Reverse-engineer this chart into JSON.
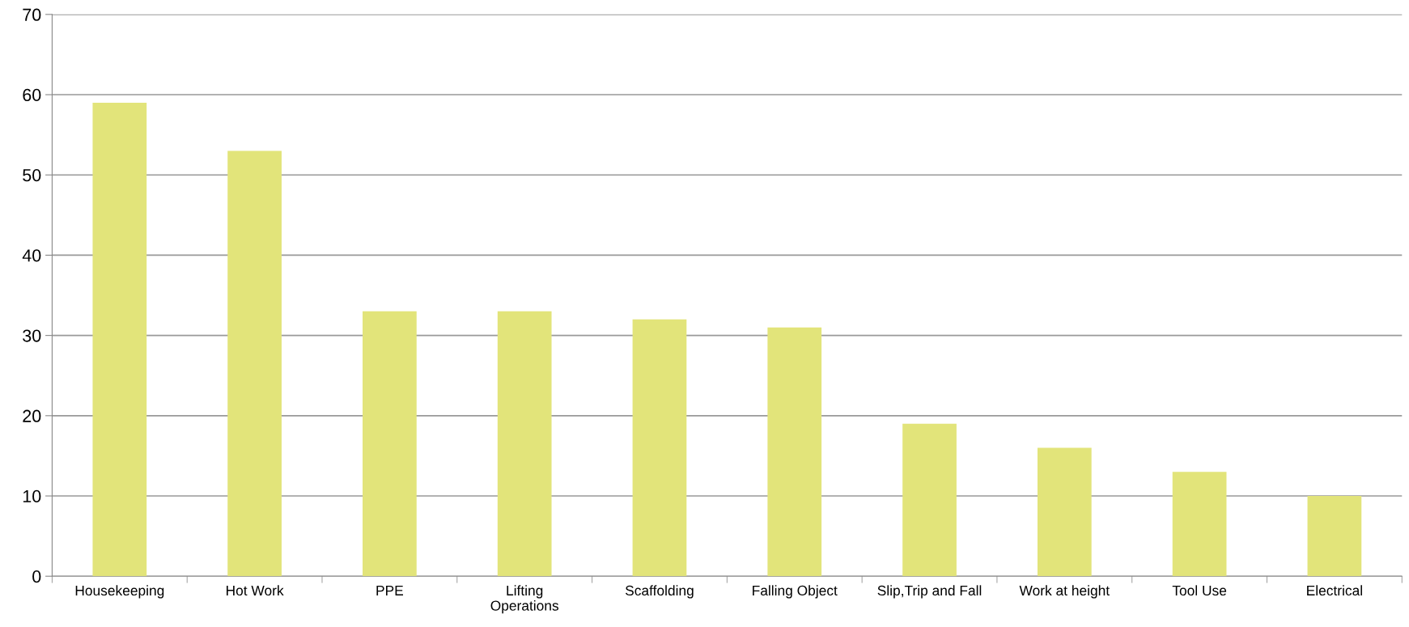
{
  "chart_data": {
    "type": "bar",
    "categories": [
      "Housekeeping",
      "Hot Work",
      "PPE",
      "Lifting\nOperations",
      "Scaffolding",
      "Falling Object",
      "Slip,Trip and Fall",
      "Work at height",
      "Tool Use",
      "Electrical"
    ],
    "values": [
      59,
      53,
      33,
      33,
      32,
      31,
      19,
      16,
      13,
      10
    ],
    "color": "#e2e47a",
    "ylim": [
      0,
      70
    ],
    "yticks": [
      0,
      10,
      20,
      30,
      40,
      50,
      60,
      70
    ],
    "grid": "y",
    "legend": false
  }
}
